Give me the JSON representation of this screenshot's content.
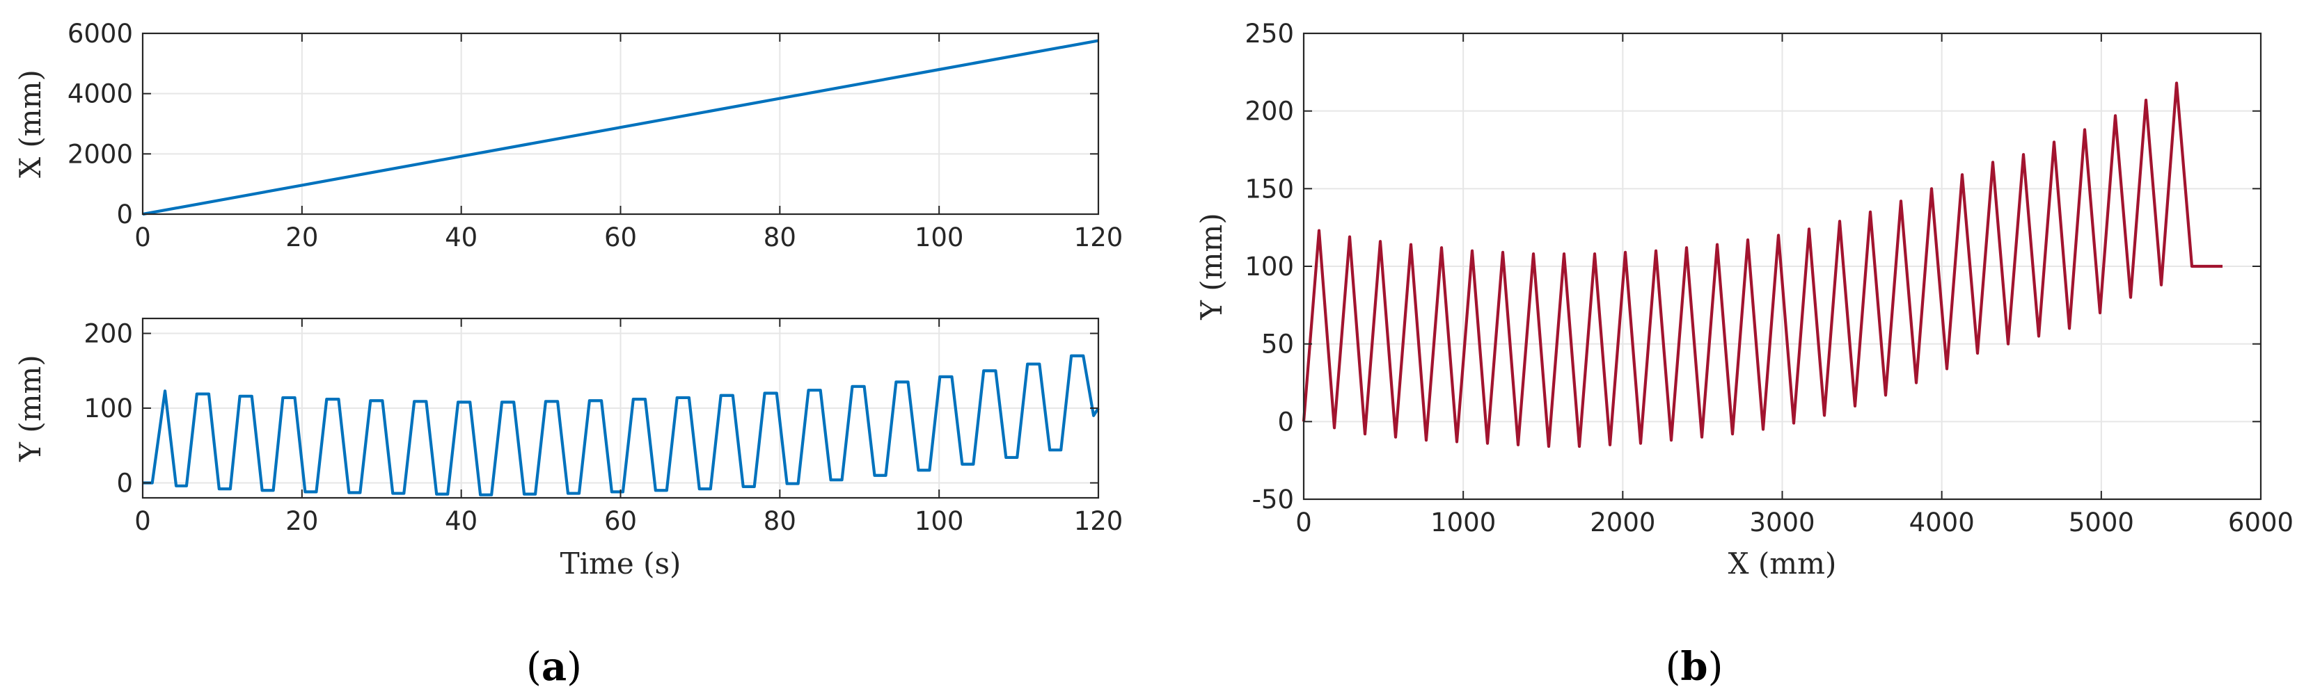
{
  "colors": {
    "series_a": "#0072BD",
    "series_b": "#A2142F",
    "grid": "#e6e6e6",
    "axis": "#262626"
  },
  "panels": {
    "a_label": "a",
    "b_label": "b"
  },
  "chart_data": [
    {
      "id": "a-top",
      "type": "line",
      "xlabel": "",
      "ylabel": "X (mm)",
      "xlim": [
        0,
        120
      ],
      "ylim": [
        0,
        6000
      ],
      "xticks": [
        0,
        20,
        40,
        60,
        80,
        100,
        120
      ],
      "yticks": [
        0,
        2000,
        4000,
        6000
      ],
      "grid": true,
      "series": [
        {
          "color": "#0072BD",
          "x": [
            0,
            20,
            40,
            60,
            80,
            100,
            120
          ],
          "y": [
            0,
            960,
            1920,
            2880,
            3840,
            4800,
            5760
          ]
        }
      ]
    },
    {
      "id": "a-bottom",
      "type": "line",
      "xlabel": "Time (s)",
      "ylabel": "Y (mm)",
      "xlim": [
        0,
        120
      ],
      "ylim": [
        -20,
        220
      ],
      "xticks": [
        0,
        20,
        40,
        60,
        80,
        100,
        120
      ],
      "yticks": [
        0,
        100,
        200
      ],
      "grid": true,
      "series": [
        {
          "color": "#0072BD",
          "x": [
            0,
            1.2,
            2.8,
            4.2,
            5.5,
            6.8,
            8.3,
            9.6,
            11.0,
            12.2,
            13.7,
            15.0,
            16.4,
            17.6,
            19.1,
            20.4,
            21.8,
            23.1,
            24.6,
            25.9,
            27.3,
            28.6,
            30.1,
            31.4,
            32.8,
            34.1,
            35.6,
            36.9,
            38.3,
            39.6,
            41.1,
            42.4,
            43.8,
            45.1,
            46.6,
            47.9,
            49.3,
            50.6,
            52.1,
            53.4,
            54.8,
            56.1,
            57.6,
            58.9,
            60.3,
            61.6,
            63.1,
            64.4,
            65.8,
            67.1,
            68.6,
            69.9,
            71.3,
            72.6,
            74.1,
            75.4,
            76.8,
            78.1,
            79.6,
            80.9,
            82.3,
            83.6,
            85.1,
            86.4,
            87.8,
            89.1,
            90.6,
            91.9,
            93.3,
            94.6,
            96.1,
            97.4,
            98.8,
            100.1,
            101.6,
            102.9,
            104.3,
            105.6,
            107.1,
            108.4,
            109.8,
            111.1,
            112.6,
            113.9,
            115.3,
            116.6,
            118.1,
            119.4,
            120
          ],
          "y": [
            0,
            0,
            123,
            -4,
            -4,
            119,
            119,
            -8,
            -8,
            116,
            116,
            -10,
            -10,
            114,
            114,
            -12,
            -12,
            112,
            112,
            -13,
            -13,
            110,
            110,
            -14,
            -14,
            109,
            109,
            -15,
            -15,
            108,
            108,
            -16,
            -16,
            108,
            108,
            -15,
            -15,
            109,
            109,
            -14,
            -14,
            110,
            110,
            -12,
            -12,
            112,
            112,
            -10,
            -10,
            114,
            114,
            -8,
            -8,
            117,
            117,
            -5,
            -5,
            120,
            120,
            -1,
            -1,
            124,
            124,
            4,
            4,
            129,
            129,
            10,
            10,
            135,
            135,
            17,
            17,
            142,
            142,
            25,
            25,
            150,
            150,
            34,
            34,
            159,
            159,
            44,
            44,
            170,
            170,
            90,
            100
          ]
        }
      ]
    },
    {
      "id": "b",
      "type": "line",
      "xlabel": "X (mm)",
      "ylabel": "Y (mm)",
      "xlim": [
        0,
        6000
      ],
      "ylim": [
        -50,
        250
      ],
      "xticks": [
        0,
        1000,
        2000,
        3000,
        4000,
        5000,
        6000
      ],
      "yticks": [
        -50,
        0,
        50,
        100,
        150,
        200,
        250
      ],
      "grid": true,
      "series": [
        {
          "color": "#A2142F",
          "x": [
            0,
            96,
            192,
            288,
            384,
            480,
            576,
            672,
            768,
            864,
            960,
            1056,
            1152,
            1248,
            1344,
            1440,
            1536,
            1632,
            1728,
            1824,
            1920,
            2016,
            2112,
            2208,
            2304,
            2400,
            2496,
            2592,
            2688,
            2784,
            2880,
            2976,
            3072,
            3168,
            3264,
            3360,
            3456,
            3552,
            3648,
            3744,
            3840,
            3936,
            4032,
            4128,
            4224,
            4320,
            4416,
            4512,
            4608,
            4704,
            4800,
            4896,
            4992,
            5088,
            5184,
            5280,
            5376,
            5472,
            5568,
            5664,
            5760
          ],
          "y": [
            0,
            123,
            -4,
            119,
            -8,
            116,
            -10,
            114,
            -12,
            112,
            -13,
            110,
            -14,
            109,
            -15,
            108,
            -16,
            108,
            -16,
            108,
            -15,
            109,
            -14,
            110,
            -12,
            112,
            -10,
            114,
            -8,
            117,
            -5,
            120,
            -1,
            124,
            4,
            129,
            10,
            135,
            17,
            142,
            25,
            150,
            34,
            159,
            44,
            167,
            50,
            172,
            55,
            180,
            60,
            188,
            70,
            197,
            80,
            207,
            88,
            218,
            100,
            100,
            100
          ]
        }
      ]
    }
  ]
}
